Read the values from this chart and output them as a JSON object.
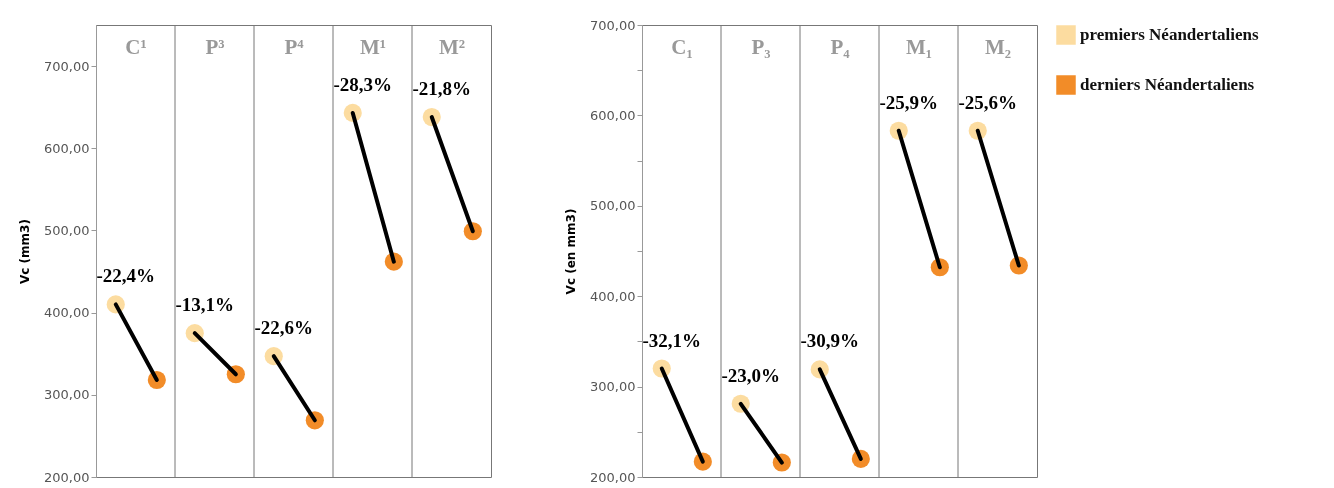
{
  "chart_data": [
    {
      "type": "scatter",
      "ylabel": "Vc (mm3)",
      "categories": [
        "C¹",
        "P³",
        "P⁴",
        "M¹",
        "M²"
      ],
      "marker": "circle",
      "grid": "x",
      "legend": "right",
      "series": [
        {
          "name": "premiers Néandertaliens",
          "color": "#fcdca0",
          "values": [
            410,
            375,
            347,
            643,
            638
          ]
        },
        {
          "name": "derniers Néandertaliens",
          "color": "#f28c28",
          "values": [
            318,
            325,
            269,
            462,
            499
          ]
        }
      ],
      "ylim": [
        200,
        750
      ],
      "yticks": [
        {
          "value": 200,
          "label": "200,00"
        },
        {
          "value": 300,
          "label": "300,00"
        },
        {
          "value": 400,
          "label": "400,00"
        },
        {
          "value": 500,
          "label": "500,00"
        },
        {
          "value": 600,
          "label": "600,00"
        },
        {
          "value": 700,
          "label": "700,00"
        }
      ],
      "annotations": [
        {
          "text": "-22,4%",
          "y": 410
        },
        {
          "text": "-13,1%",
          "y": 375
        },
        {
          "text": "-22,6%",
          "y": 347
        },
        {
          "text": "-28,3%",
          "y": 643
        },
        {
          "text": "-21,8%",
          "y": 638
        }
      ]
    },
    {
      "type": "scatter",
      "ylabel": "Vc (en mm3)",
      "categories": [
        "C₁",
        "P₃",
        "P₄",
        "M₁",
        "M₂"
      ],
      "marker": "circle",
      "grid": "x",
      "legend": "right",
      "series": [
        {
          "name": "premiers Néandertaliens",
          "color": "#fcdca0",
          "values": [
            320,
            281,
            319,
            583,
            583
          ]
        },
        {
          "name": "derniers Néandertaliens",
          "color": "#f28c28",
          "values": [
            217,
            216,
            220,
            432,
            434
          ]
        }
      ],
      "ylim": [
        200,
        700
      ],
      "yticks": [
        {
          "value": 200,
          "label": "200,00"
        },
        {
          "value": 250,
          "label": null
        },
        {
          "value": 300,
          "label": "300,00"
        },
        {
          "value": 350,
          "label": null
        },
        {
          "value": 400,
          "label": "400,00"
        },
        {
          "value": 450,
          "label": null
        },
        {
          "value": 500,
          "label": "500,00"
        },
        {
          "value": 550,
          "label": null
        },
        {
          "value": 600,
          "label": "600,00"
        },
        {
          "value": 650,
          "label": null
        },
        {
          "value": 700,
          "label": "700,00"
        }
      ],
      "annotations": [
        {
          "text": "-32,1%",
          "y": 320
        },
        {
          "text": "-23,0%",
          "y": 281
        },
        {
          "text": "-30,9%",
          "y": 319
        },
        {
          "text": "-25,9%",
          "y": 583
        },
        {
          "text": "-25,6%",
          "y": 583
        }
      ]
    }
  ]
}
